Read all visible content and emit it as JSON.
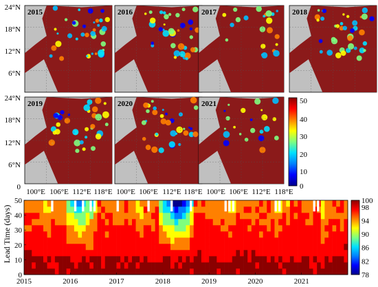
{
  "maps": {
    "panel_years": [
      "2015",
      "2016",
      "2017",
      "2018",
      "2019",
      "2020",
      "2021"
    ],
    "lat_ticks": [
      "0",
      "6°N",
      "12°N",
      "18°N",
      "24°N"
    ],
    "lon_ticks": [
      "100°E",
      "106°E",
      "112°E",
      "118°E"
    ],
    "colorbar": {
      "ticks": [
        "0",
        "10",
        "20",
        "30",
        "40",
        "50"
      ],
      "stops": [
        "#00008b",
        "#0000ff",
        "#0080ff",
        "#00e0ff",
        "#7fff7f",
        "#ffff00",
        "#ff8000",
        "#ff0000",
        "#8b0000"
      ]
    },
    "colors": {
      "land": "#c0c0c0",
      "persistent": "#8b1a1a"
    }
  },
  "chart_data": {
    "type": "heatmap",
    "title": "",
    "xlabel": "",
    "ylabel": "Lead Time (days)",
    "x_ticks": [
      "2015",
      "2016",
      "2017",
      "2018",
      "2019",
      "2020",
      "2021"
    ],
    "y_ticks": [
      "0",
      "10",
      "20",
      "30",
      "40",
      "50"
    ],
    "ylim": [
      0,
      50
    ],
    "colorbar_ticks": [
      "78",
      "82",
      "86",
      "90",
      "94",
      "98",
      "100"
    ],
    "colorbar_range": [
      78,
      100
    ],
    "colors": [
      "#00008b",
      "#0000ff",
      "#0080ff",
      "#00e0ff",
      "#7fff7f",
      "#ffff00",
      "#ff8000",
      "#ff0000",
      "#8b0000"
    ],
    "x_range": [
      "2015-01",
      "2021-12"
    ],
    "notes_from_image": "Percentage values mostly 94–100 at low lead times, decreasing toward 78–86 at 40–50 days in early 2016 and early 2018."
  }
}
